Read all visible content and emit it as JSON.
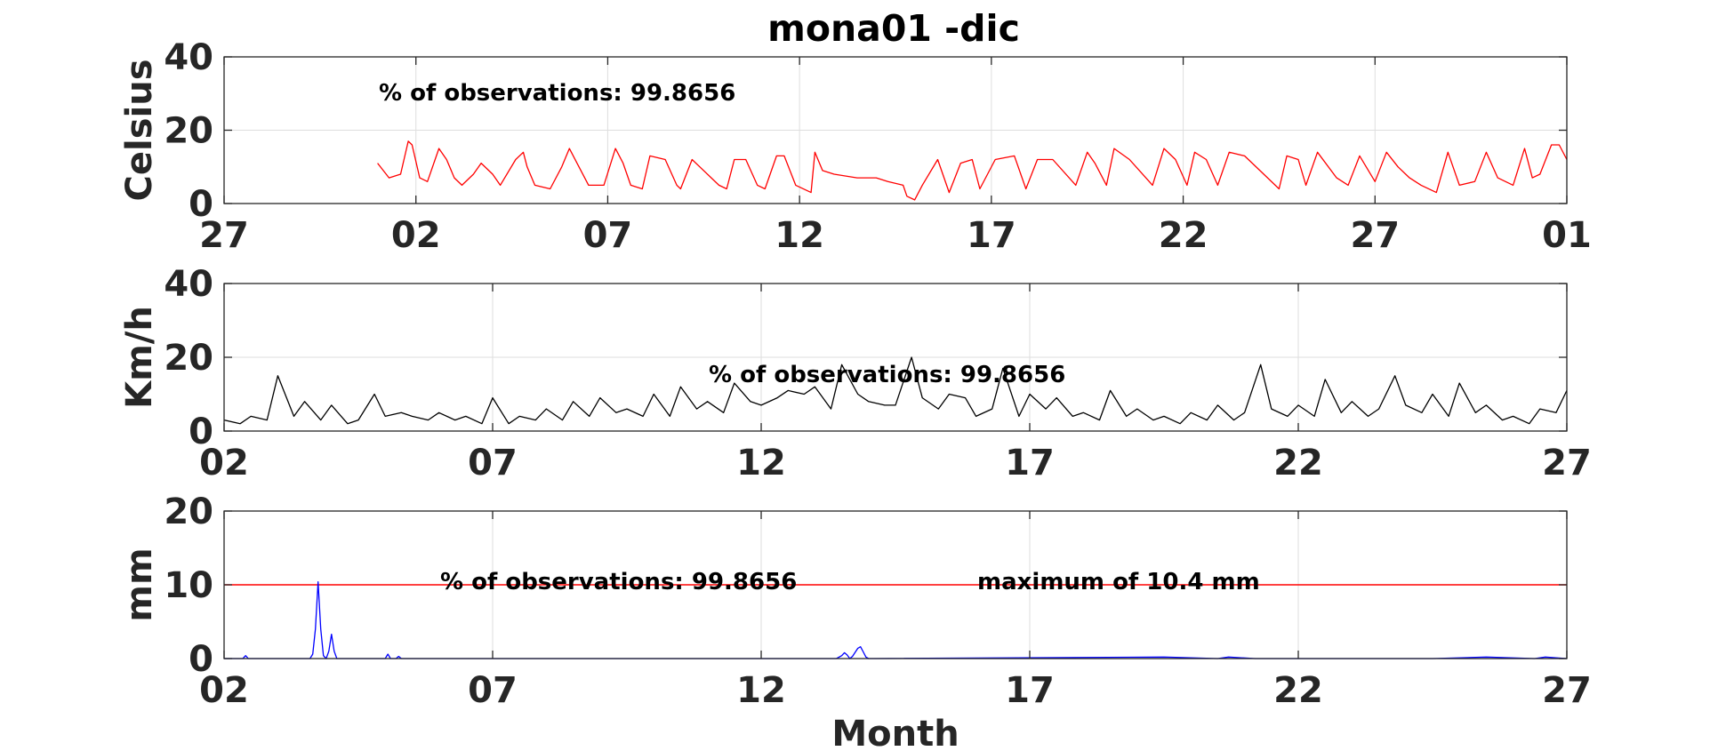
{
  "title": "mona01 -dic",
  "colors": {
    "temperature": "#ff0000",
    "wind": "#000000",
    "precipitation": "#0000ff",
    "threshold": "#ff0000",
    "grid": "#dedede",
    "axis": "#262626"
  },
  "chart_data": [
    {
      "type": "line",
      "ylabel": "Celsius",
      "xlabel": "",
      "xlim": [
        0,
        35
      ],
      "ylim": [
        0,
        40
      ],
      "x_ticks": [
        0,
        5,
        10,
        15,
        20,
        25,
        30,
        35
      ],
      "x_tick_labels": [
        "27",
        "02",
        "07",
        "12",
        "17",
        "22",
        "27",
        "01"
      ],
      "y_ticks": [
        0,
        20,
        40
      ],
      "y_tick_labels": [
        "0",
        "20",
        "40"
      ],
      "grid": true,
      "annotations": [
        "% of observations: 99.8656"
      ],
      "series": [
        {
          "x": [
            4.0,
            4.3,
            4.6,
            4.8,
            4.9,
            5.1,
            5.3,
            5.6,
            5.8,
            6.0,
            6.2,
            6.5,
            6.7,
            7.0,
            7.2,
            7.6,
            7.8,
            7.9,
            8.1,
            8.5,
            8.8,
            9.0,
            9.2,
            9.5,
            9.9,
            10.2,
            10.4,
            10.6,
            10.9,
            11.1,
            11.5,
            11.8,
            11.9,
            12.2,
            12.4,
            12.9,
            13.1,
            13.3,
            13.6,
            13.9,
            14.1,
            14.4,
            14.6,
            14.9,
            15.3,
            15.4,
            15.6,
            15.9,
            16.5,
            17.0,
            17.3,
            17.7,
            17.8,
            18.0,
            18.2,
            18.6,
            18.9,
            19.2,
            19.5,
            19.7,
            20.1,
            20.6,
            20.9,
            21.2,
            21.6,
            22.2,
            22.5,
            22.7,
            23.0,
            23.2,
            23.6,
            24.2,
            24.5,
            24.8,
            25.1,
            25.3,
            25.6,
            25.9,
            26.2,
            26.6,
            27.1,
            27.5,
            27.7,
            28.0,
            28.2,
            28.5,
            29.0,
            29.3,
            29.6,
            30.0,
            30.3,
            30.6,
            30.9,
            31.2,
            31.6,
            31.9,
            32.2,
            32.6,
            32.9,
            33.2,
            33.6,
            33.9,
            34.1,
            34.3,
            34.6,
            34.8,
            35.0
          ],
          "y": [
            11,
            7,
            8,
            17,
            16,
            7,
            6,
            15,
            12,
            7,
            5,
            8,
            11,
            8,
            5,
            12,
            14,
            10,
            5,
            4,
            10,
            15,
            11,
            5,
            5,
            15,
            11,
            5,
            4,
            13,
            12,
            5,
            4,
            12,
            10,
            5,
            4,
            12,
            12,
            5,
            4,
            13,
            13,
            5,
            3,
            14,
            9,
            8,
            7,
            7,
            6,
            5,
            2,
            1,
            5,
            12,
            3,
            11,
            12,
            4,
            12,
            13,
            4,
            12,
            12,
            5,
            14,
            11,
            5,
            15,
            12,
            5,
            15,
            12,
            5,
            14,
            12,
            5,
            14,
            13,
            8,
            4,
            13,
            12,
            5,
            14,
            7,
            5,
            13,
            6,
            14,
            10,
            7,
            5,
            3,
            14,
            5,
            6,
            14,
            7,
            5,
            15,
            7,
            8,
            16,
            16,
            12
          ]
        }
      ]
    },
    {
      "type": "line",
      "ylabel": "Km/h",
      "xlabel": "",
      "xlim": [
        0,
        25
      ],
      "ylim": [
        0,
        40
      ],
      "x_ticks": [
        0,
        5,
        10,
        15,
        20,
        25
      ],
      "x_tick_labels": [
        "02",
        "07",
        "12",
        "17",
        "22",
        "27"
      ],
      "y_ticks": [
        0,
        20,
        40
      ],
      "y_tick_labels": [
        "0",
        "20",
        "40"
      ],
      "grid": true,
      "annotations": [
        "% of observations: 99.8656"
      ],
      "series": [
        {
          "x": [
            0.0,
            0.3,
            0.5,
            0.8,
            1.0,
            1.3,
            1.5,
            1.8,
            2.0,
            2.3,
            2.5,
            2.8,
            3.0,
            3.3,
            3.5,
            3.8,
            4.0,
            4.3,
            4.5,
            4.8,
            5.0,
            5.3,
            5.5,
            5.8,
            6.0,
            6.3,
            6.5,
            6.8,
            7.0,
            7.3,
            7.5,
            7.8,
            8.0,
            8.3,
            8.5,
            8.8,
            9.0,
            9.3,
            9.5,
            9.8,
            10.0,
            10.3,
            10.5,
            10.8,
            11.0,
            11.3,
            11.5,
            11.8,
            12.0,
            12.3,
            12.5,
            12.8,
            13.0,
            13.3,
            13.5,
            13.8,
            14.0,
            14.3,
            14.5,
            14.8,
            15.0,
            15.3,
            15.5,
            15.8,
            16.0,
            16.3,
            16.5,
            16.8,
            17.0,
            17.3,
            17.5,
            17.8,
            18.0,
            18.3,
            18.5,
            18.8,
            19.0,
            19.3,
            19.5,
            19.8,
            20.0,
            20.3,
            20.5,
            20.8,
            21.0,
            21.3,
            21.5,
            21.8,
            22.0,
            22.3,
            22.5,
            22.8,
            23.0,
            23.3,
            23.5,
            23.8,
            24.0,
            24.3,
            24.5,
            24.8,
            25.0
          ],
          "y": [
            3,
            2,
            4,
            3,
            15,
            4,
            8,
            3,
            7,
            2,
            3,
            10,
            4,
            5,
            4,
            3,
            5,
            3,
            4,
            2,
            9,
            2,
            4,
            3,
            6,
            3,
            8,
            4,
            9,
            5,
            6,
            4,
            10,
            4,
            12,
            6,
            8,
            5,
            13,
            8,
            7,
            9,
            11,
            10,
            12,
            6,
            18,
            10,
            8,
            7,
            7,
            20,
            9,
            6,
            10,
            9,
            4,
            6,
            17,
            4,
            10,
            6,
            9,
            4,
            5,
            3,
            11,
            4,
            6,
            3,
            4,
            2,
            5,
            3,
            7,
            3,
            5,
            18,
            6,
            4,
            7,
            4,
            14,
            5,
            8,
            4,
            6,
            15,
            7,
            5,
            10,
            4,
            13,
            5,
            7,
            3,
            4,
            2,
            6,
            5,
            11
          ]
        }
      ]
    },
    {
      "type": "line",
      "ylabel": "mm",
      "xlabel": "Month",
      "xlim": [
        0,
        25
      ],
      "ylim": [
        0,
        20
      ],
      "x_ticks": [
        0,
        5,
        10,
        15,
        20,
        25
      ],
      "x_tick_labels": [
        "02",
        "07",
        "12",
        "17",
        "22",
        "27"
      ],
      "y_ticks": [
        0,
        10,
        20
      ],
      "y_tick_labels": [
        "0",
        "10",
        "20"
      ],
      "grid": true,
      "annotations": [
        "% of observations: 99.8656",
        "maximum of 10.4 mm"
      ],
      "threshold": 10,
      "series": [
        {
          "x": [
            0.0,
            0.35,
            0.4,
            0.45,
            1.2,
            1.6,
            1.65,
            1.7,
            1.75,
            1.8,
            1.85,
            1.9,
            1.95,
            2.0,
            2.05,
            2.1,
            2.15,
            2.7,
            3.0,
            3.05,
            3.1,
            3.2,
            3.25,
            3.3,
            3.9,
            5.3,
            6.5,
            11.4,
            11.5,
            11.55,
            11.6,
            11.65,
            11.7,
            11.8,
            11.85,
            11.9,
            11.95,
            12.0,
            12.1,
            17.5,
            18.5,
            18.7,
            19.2,
            22.5,
            23.5,
            24.4,
            24.6,
            25.0
          ],
          "y": [
            0,
            0,
            0.4,
            0,
            0,
            0,
            0.6,
            4,
            10.4,
            4,
            0.4,
            0,
            1,
            3.3,
            1,
            0,
            0,
            0,
            0,
            0.6,
            0,
            0,
            0.3,
            0,
            0,
            0,
            0,
            0,
            0.4,
            0.8,
            0.5,
            0,
            0.3,
            1.4,
            1.6,
            0.9,
            0.2,
            0,
            0,
            0.2,
            0,
            0.2,
            0,
            0,
            0.2,
            0,
            0.2,
            0
          ]
        }
      ]
    }
  ]
}
